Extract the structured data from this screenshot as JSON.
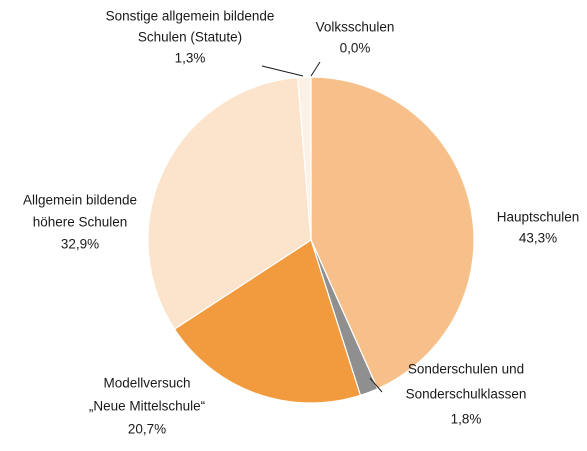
{
  "chart_data": {
    "type": "pie",
    "categories": [
      [
        "Volksschulen"
      ],
      [
        "Hauptschulen"
      ],
      [
        "Sonderschulen und",
        "Sonderschulklassen"
      ],
      [
        "Modellversuch",
        "„Neue Mittelschule“"
      ],
      [
        "Allgemein bildende",
        "höhere Schulen"
      ],
      [
        "Sonstige allgemein bildende",
        "Schulen (Statute)"
      ]
    ],
    "values": [
      0.0,
      43.3,
      1.8,
      20.7,
      32.9,
      1.3
    ],
    "value_labels": [
      "0,0%",
      "43,3%",
      "1,8%",
      "20,7%",
      "32,9%",
      "1,3%"
    ],
    "colors": [
      "#f7c08a",
      "#f7c08a",
      "#8f8f8f",
      "#f19a3e",
      "#fbe3cc",
      "#fdf1e6"
    ]
  }
}
